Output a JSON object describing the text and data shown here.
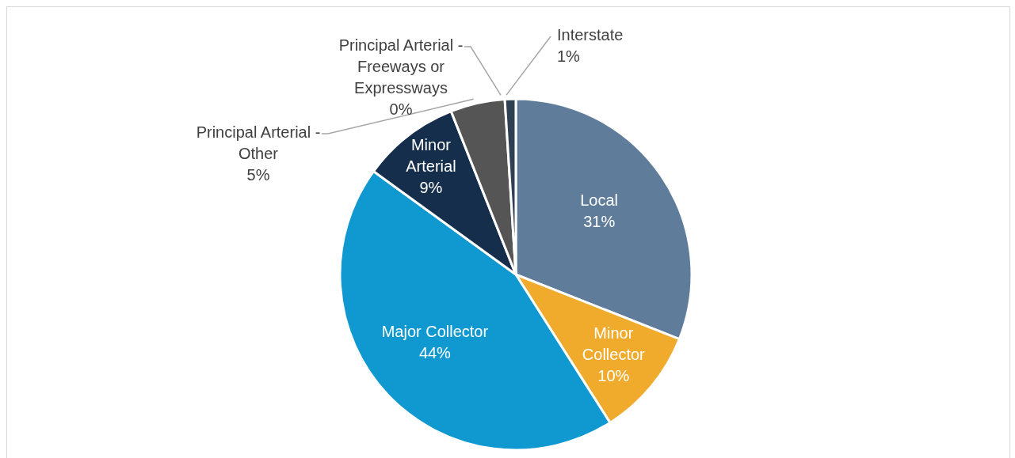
{
  "chart_data": {
    "type": "pie",
    "categories": [
      "Local",
      "Minor Collector",
      "Major Collector",
      "Minor Arterial",
      "Principal Arterial - Other",
      "Principal Arterial - Freeways or Expressways",
      "Interstate"
    ],
    "values": [
      31,
      10,
      44,
      9,
      5,
      0,
      1
    ],
    "value_labels": [
      "31%",
      "10%",
      "44%",
      "9%",
      "5%",
      "0%",
      "1%"
    ],
    "colors": [
      "#5f7d9a",
      "#f0ab2c",
      "#0f99d0",
      "#152e4b",
      "#555555",
      "#e8e8e8",
      "#2f4052"
    ],
    "legend": false
  }
}
